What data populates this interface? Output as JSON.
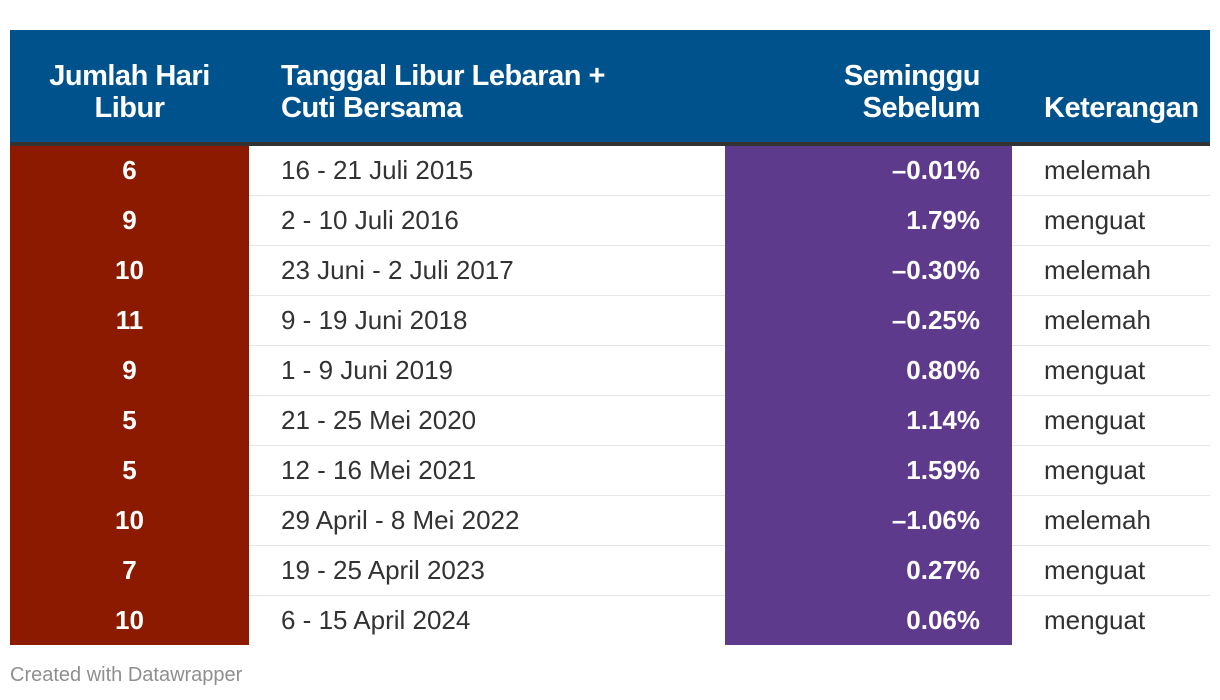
{
  "chart_data": {
    "type": "table",
    "columns": [
      "Jumlah Hari Libur",
      "Tanggal Libur Lebaran + Cuti Bersama",
      "Seminggu Sebelum",
      "Keterangan"
    ],
    "rows": [
      {
        "days": "6",
        "dates": "16 - 21 Juli 2015",
        "change": "–0.01%",
        "note": "melemah"
      },
      {
        "days": "9",
        "dates": "2 - 10 Juli 2016",
        "change": "1.79%",
        "note": "menguat"
      },
      {
        "days": "10",
        "dates": "23 Juni - 2 Juli 2017",
        "change": "–0.30%",
        "note": "melemah"
      },
      {
        "days": "11",
        "dates": "9 - 19 Juni 2018",
        "change": "–0.25%",
        "note": "melemah"
      },
      {
        "days": "9",
        "dates": "1 - 9 Juni 2019",
        "change": "0.80%",
        "note": "menguat"
      },
      {
        "days": "5",
        "dates": "21 - 25 Mei 2020",
        "change": "1.14%",
        "note": "menguat"
      },
      {
        "days": "5",
        "dates": "12 - 16 Mei 2021",
        "change": "1.59%",
        "note": "menguat"
      },
      {
        "days": "10",
        "dates": "29 April - 8 Mei 2022",
        "change": "–1.06%",
        "note": "melemah"
      },
      {
        "days": "7",
        "dates": "19 - 25 April 2023",
        "change": "0.27%",
        "note": "menguat"
      },
      {
        "days": "10",
        "dates": "6 - 15 April 2024",
        "change": "0.06%",
        "note": "menguat"
      }
    ],
    "colors": {
      "header_bg": "#00528c",
      "days_column_bg": "#8b1a00",
      "change_column_bg": "#5e3a8c"
    }
  },
  "footer": {
    "credit": "Created with Datawrapper"
  }
}
